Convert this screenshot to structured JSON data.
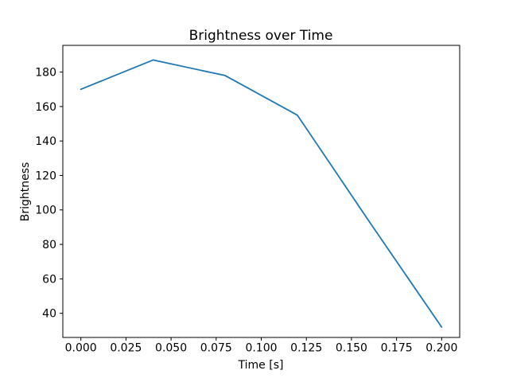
{
  "chart_data": {
    "type": "line",
    "title": "Brightness over Time",
    "xlabel": "Time [s]",
    "ylabel": "Brightness",
    "x": [
      0.0,
      0.04,
      0.08,
      0.12,
      0.16,
      0.2
    ],
    "y": [
      170,
      187,
      178,
      155,
      93,
      32
    ],
    "xticks": [
      0.0,
      0.025,
      0.05,
      0.075,
      0.1,
      0.125,
      0.15,
      0.175,
      0.2
    ],
    "xtick_labels": [
      "0.000",
      "0.025",
      "0.050",
      "0.075",
      "0.100",
      "0.125",
      "0.150",
      "0.175",
      "0.200"
    ],
    "yticks": [
      40,
      60,
      80,
      100,
      120,
      140,
      160,
      180
    ],
    "ytick_labels": [
      "40",
      "60",
      "80",
      "100",
      "120",
      "140",
      "160",
      "180"
    ],
    "xlim": [
      -0.01,
      0.21
    ],
    "ylim": [
      26,
      195.5
    ],
    "grid": false,
    "legend": null,
    "line_color": "#1f77b4",
    "axis_color": "#000000",
    "background_color": "#ffffff"
  }
}
